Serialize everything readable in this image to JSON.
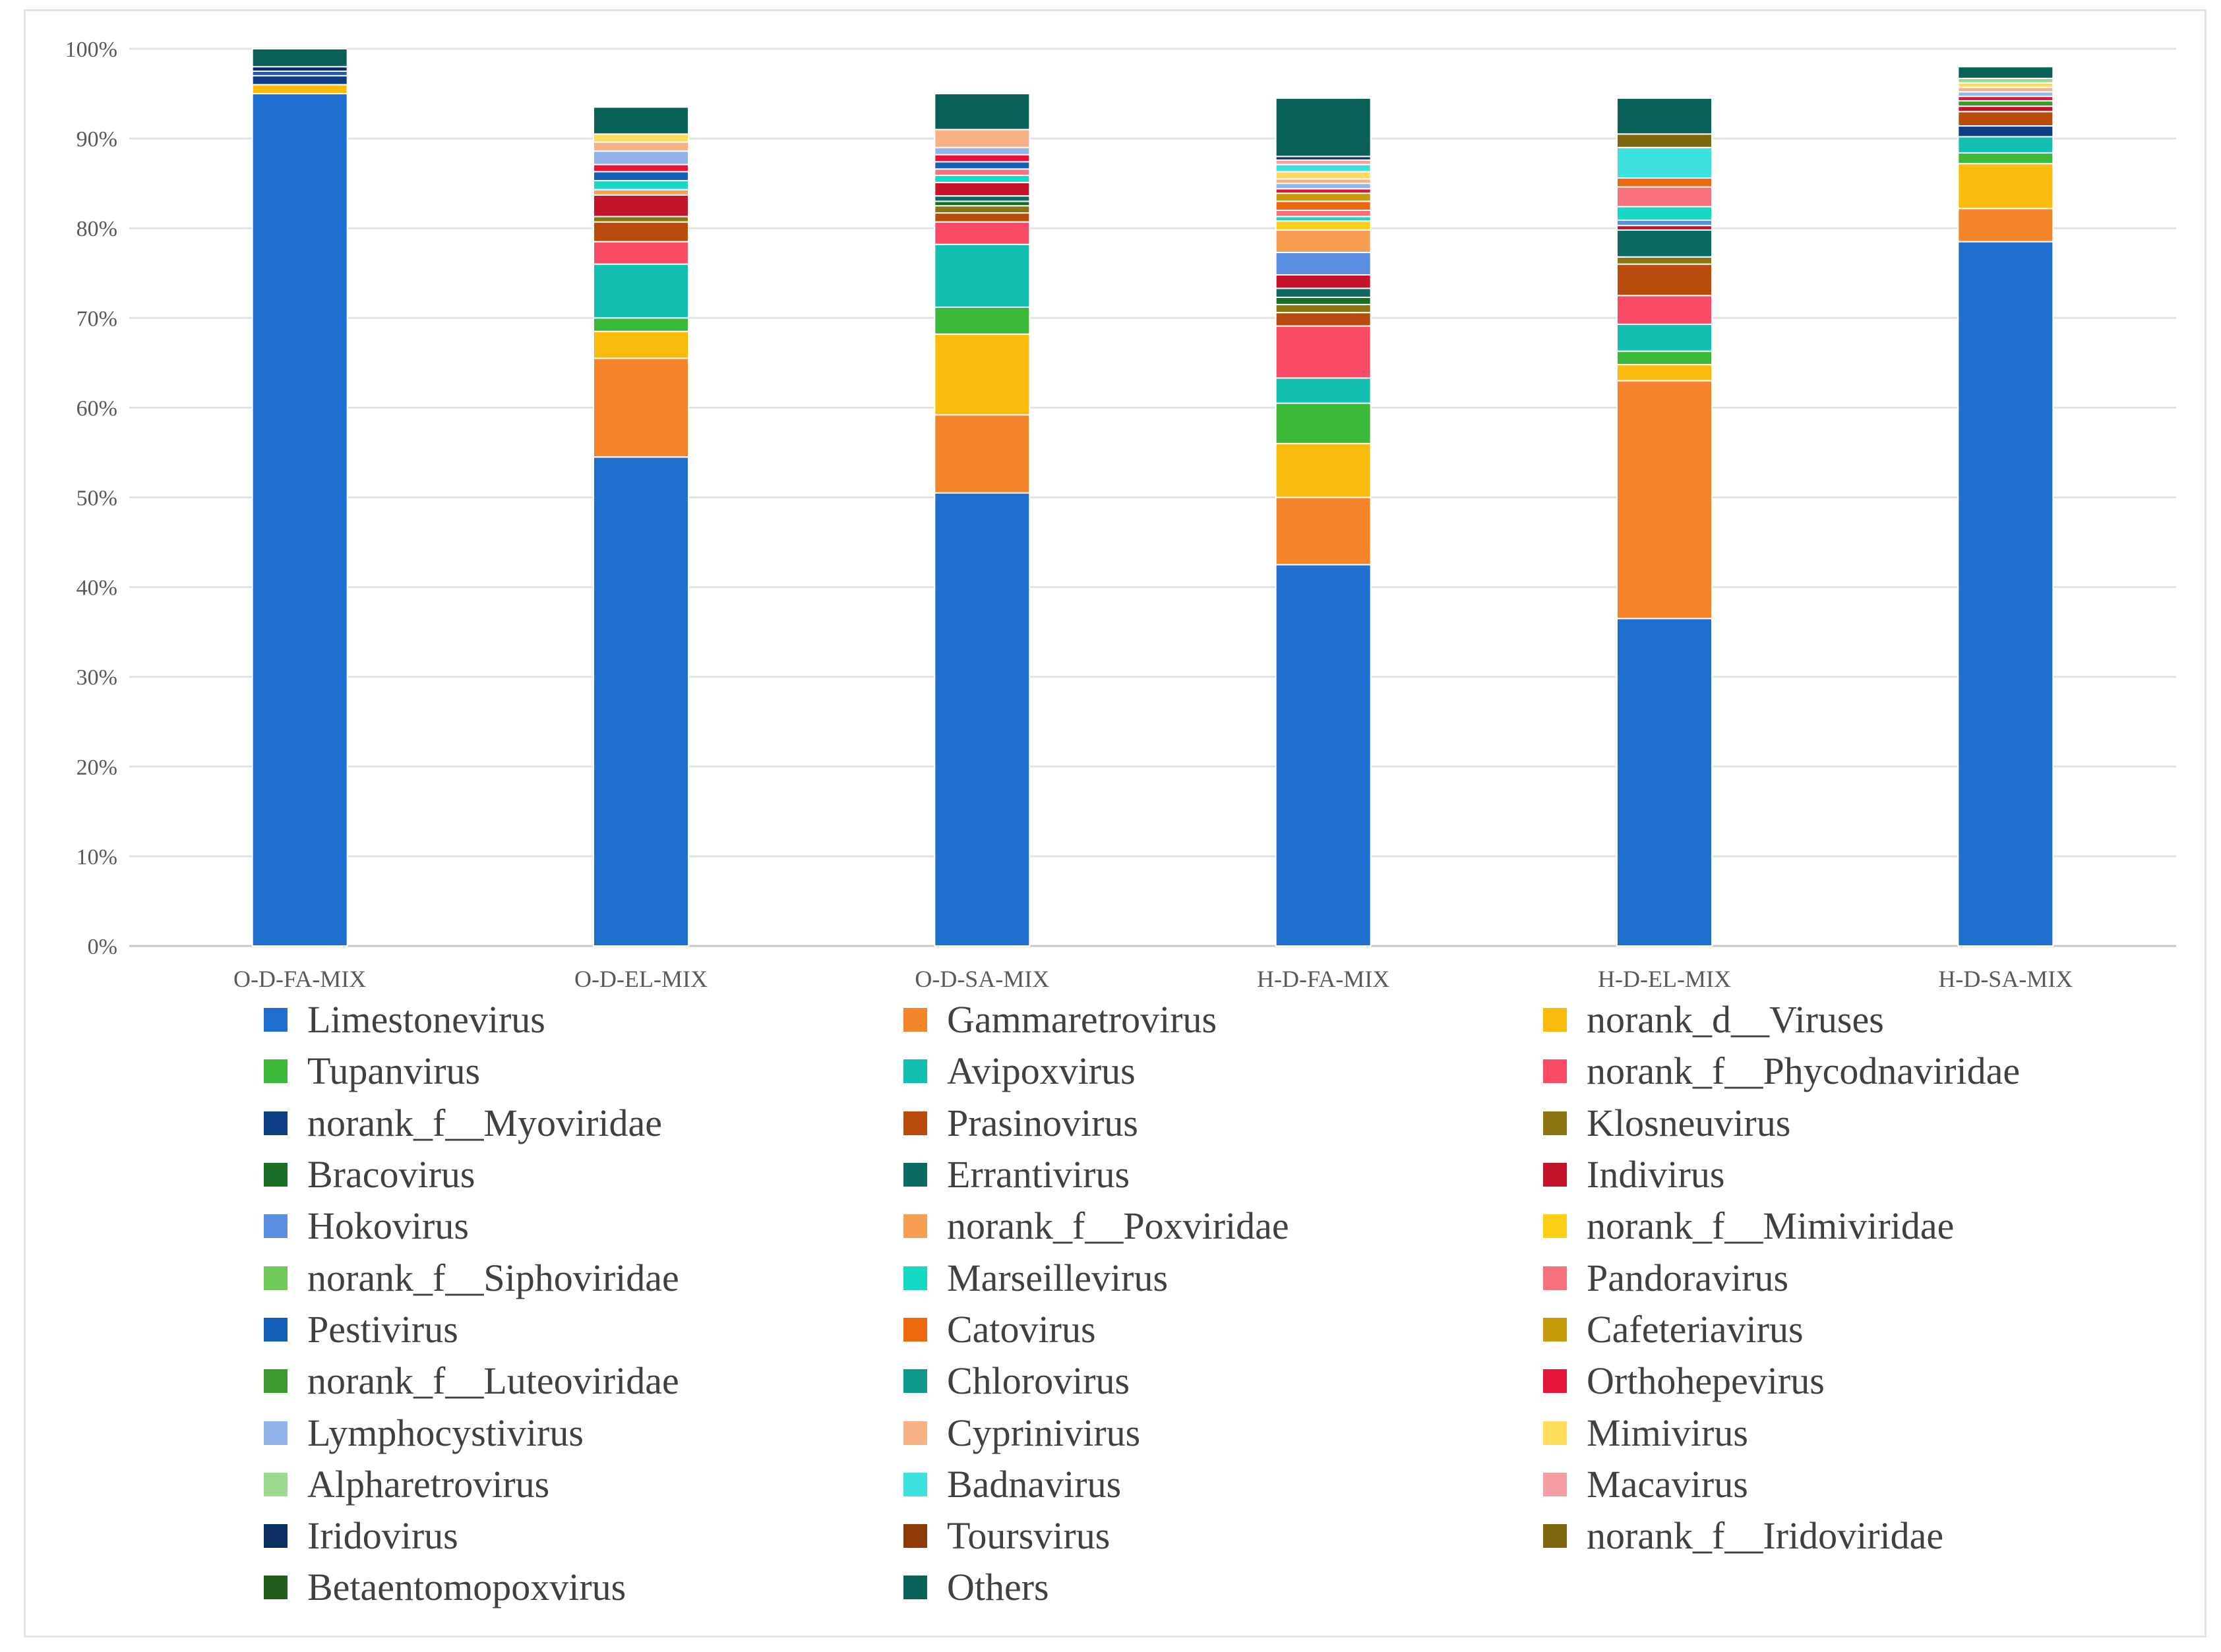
{
  "chart_data": {
    "type": "stacked-bar-100",
    "title": "",
    "xlabel": "",
    "ylabel": "",
    "ylim": [
      0,
      100
    ],
    "y_ticks": [
      "0%",
      "10%",
      "20%",
      "30%",
      "40%",
      "50%",
      "60%",
      "70%",
      "80%",
      "90%",
      "100%"
    ],
    "grid": true,
    "legend_position": "bottom",
    "categories": [
      "O-D-FA-MIX",
      "O-D-EL-MIX",
      "O-D-SA-MIX",
      "H-D-FA-MIX",
      "H-D-EL-MIX",
      "H-D-SA-MIX"
    ],
    "series": [
      {
        "name": "Limestonevirus",
        "color": "#1f6fce",
        "values": [
          95.0,
          54.5,
          50.5,
          42.5,
          36.5,
          78.5
        ]
      },
      {
        "name": "Gammaretrovirus",
        "color": "#f5852a",
        "values": [
          0,
          11.0,
          8.7,
          7.5,
          26.5,
          3.7
        ]
      },
      {
        "name": "norank_d__Viruses",
        "color": "#fbbb0c",
        "values": [
          1.0,
          3.0,
          9.0,
          6.0,
          1.8,
          5.0
        ]
      },
      {
        "name": "Tupanvirus",
        "color": "#3cb83b",
        "values": [
          0,
          1.5,
          3.0,
          4.5,
          1.5,
          1.2
        ]
      },
      {
        "name": "Avipoxvirus",
        "color": "#13bfb0",
        "values": [
          0,
          6.0,
          7.0,
          2.8,
          3.0,
          1.8
        ]
      },
      {
        "name": "norank_f__Phycodnaviridae",
        "color": "#f94b65",
        "values": [
          0,
          2.5,
          2.5,
          5.8,
          3.2,
          0
        ]
      },
      {
        "name": "norank_f__Myoviridae",
        "color": "#0f3e85",
        "values": [
          1.0,
          0,
          0,
          0,
          0,
          1.2
        ]
      },
      {
        "name": "Prasinovirus",
        "color": "#b84c0c",
        "values": [
          0,
          2.2,
          1.0,
          1.5,
          3.5,
          1.6
        ]
      },
      {
        "name": "Klosneuvirus",
        "color": "#8c7410",
        "values": [
          0,
          0.6,
          0.8,
          0.9,
          0.8,
          0
        ]
      },
      {
        "name": "Bracovirus",
        "color": "#1a6e25",
        "values": [
          0,
          0,
          0.5,
          0.8,
          0,
          0
        ]
      },
      {
        "name": "Errantivirus",
        "color": "#0b6b62",
        "values": [
          0,
          0,
          0.6,
          1.0,
          3.0,
          0
        ]
      },
      {
        "name": "Indivirus",
        "color": "#c4142c",
        "values": [
          0,
          2.4,
          1.5,
          1.5,
          0.5,
          0.6
        ]
      },
      {
        "name": "Hokovirus",
        "color": "#5b8fe0",
        "values": [
          0,
          0,
          0,
          2.5,
          0.6,
          0
        ]
      },
      {
        "name": "norank_f__Poxviridae",
        "color": "#f89e52",
        "values": [
          0,
          0.6,
          0,
          2.5,
          0,
          0
        ]
      },
      {
        "name": "norank_f__Mimiviridae",
        "color": "#fdce16",
        "values": [
          0,
          0,
          0,
          1.0,
          0,
          0
        ]
      },
      {
        "name": "norank_f__Siphoviridae",
        "color": "#70c95a",
        "values": [
          0,
          0,
          0,
          0,
          0,
          0
        ]
      },
      {
        "name": "Marseillevirus",
        "color": "#15d9c4",
        "values": [
          0,
          1.0,
          0.8,
          0.5,
          1.5,
          0
        ]
      },
      {
        "name": "Pandoravirus",
        "color": "#f6717d",
        "values": [
          0,
          0,
          0.7,
          0.7,
          2.2,
          0
        ]
      },
      {
        "name": "Pestivirus",
        "color": "#165fb7",
        "values": [
          0.5,
          1.0,
          0.8,
          0,
          0,
          0
        ]
      },
      {
        "name": "Catovirus",
        "color": "#ec6a0d",
        "values": [
          0,
          0,
          0,
          1.0,
          1.0,
          0
        ]
      },
      {
        "name": "Cafeteriavirus",
        "color": "#c79a0a",
        "values": [
          0,
          0,
          0,
          0.9,
          0,
          0
        ]
      },
      {
        "name": "norank_f__Luteoviridae",
        "color": "#3d9a2d",
        "values": [
          0,
          0,
          0,
          0,
          0,
          0.6
        ]
      },
      {
        "name": "Chlorovirus",
        "color": "#0e9a8a",
        "values": [
          0,
          0,
          0,
          0,
          0,
          0
        ]
      },
      {
        "name": "Orthohepevirus",
        "color": "#e5153a",
        "values": [
          0,
          0.8,
          0.8,
          0.5,
          0,
          0.5
        ]
      },
      {
        "name": "Lymphocystivirus",
        "color": "#92b4e8",
        "values": [
          0,
          1.5,
          0.8,
          0.6,
          0,
          0.5
        ]
      },
      {
        "name": "Cyprinivirus",
        "color": "#f7b184",
        "values": [
          0,
          1.0,
          2.0,
          0.5,
          0,
          0.5
        ]
      },
      {
        "name": "Mimivirus",
        "color": "#fddc5c",
        "values": [
          0,
          0.9,
          0,
          0.8,
          0,
          0.5
        ]
      },
      {
        "name": "Alpharetrovirus",
        "color": "#9dd990",
        "values": [
          0,
          0,
          0,
          0,
          0,
          0.5
        ]
      },
      {
        "name": "Badnavirus",
        "color": "#3ee0de",
        "values": [
          0,
          0,
          0,
          0.8,
          3.4,
          0
        ]
      },
      {
        "name": "Macavirus",
        "color": "#f59ea3",
        "values": [
          0,
          0,
          0,
          0.5,
          0,
          0
        ]
      },
      {
        "name": "Iridovirus",
        "color": "#0b2f63",
        "values": [
          0.5,
          0,
          0,
          0.4,
          0,
          0
        ]
      },
      {
        "name": "Toursvirus",
        "color": "#8f3b06",
        "values": [
          0,
          0,
          0,
          0,
          0,
          0
        ]
      },
      {
        "name": "norank_f__Iridoviridae",
        "color": "#7d650e",
        "values": [
          0,
          0,
          0,
          0,
          1.5,
          0
        ]
      },
      {
        "name": "Betaentomopoxvirus",
        "color": "#235c1c",
        "values": [
          0,
          0,
          0,
          0,
          0,
          0
        ]
      },
      {
        "name": "Others",
        "color": "#0a6157",
        "values": [
          2.0,
          3.0,
          4.0,
          6.5,
          4.0,
          1.3
        ]
      }
    ]
  }
}
